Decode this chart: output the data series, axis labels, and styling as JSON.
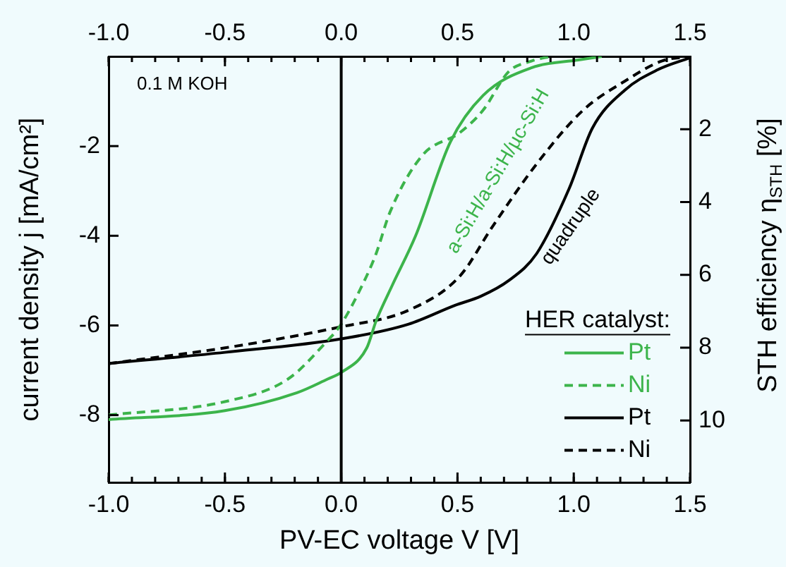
{
  "chart_data": {
    "type": "line",
    "xlabel": "PV-EC voltage V [V]",
    "ylabel": "current density j [mA/cm²]",
    "y2label": "STH efficiency η$_{STH}$ [%]",
    "legend_title": "HER catalyst:",
    "xlim": [
      -1.0,
      1.5
    ],
    "xticks": [
      {
        "value": -1,
        "label": "-1.0"
      },
      -0.5,
      {
        "value": 0,
        "label": "0.0"
      },
      0.5,
      {
        "value": 1,
        "label": "1.0"
      },
      1.5
    ],
    "x2lim": [
      -1.0,
      1.5
    ],
    "x2ticks": [
      {
        "value": -1,
        "label": "-1.0"
      },
      -0.5,
      {
        "value": 0,
        "label": "0.0"
      },
      0.5,
      {
        "value": 1,
        "label": "1.0"
      },
      1.5
    ],
    "ylim": [
      -9.5,
      0
    ],
    "yticks": [
      -2,
      -4,
      -6,
      -8
    ],
    "y2lim": [
      11.7,
      0
    ],
    "y2ticks": [
      2,
      4,
      6,
      8,
      10
    ],
    "legend": "right",
    "ref_lines": [
      {
        "axis": "x",
        "value": 0,
        "color": "#000000"
      }
    ],
    "annotations": [
      "0.1 M KOH",
      "a-Si:H/a-Si:H/µc-Si:H",
      "quadruple"
    ],
    "series": [
      {
        "name": "Pt",
        "color": "#3cb44b",
        "line_style": "solid",
        "x": [
          -1.0,
          -0.5,
          -0.19,
          -0.06,
          0,
          0.11,
          0.15,
          0.22,
          0.32,
          0.47,
          0.61,
          0.82,
          1.02,
          1.12
        ],
        "values": [
          -8.1,
          -7.9,
          -7.5,
          -7.2,
          -7.05,
          -6.5,
          -5.9,
          -5.1,
          -4.0,
          -1.9,
          -0.87,
          -0.25,
          -0.08,
          0
        ]
      },
      {
        "name": "Ni",
        "color": "#3cb44b",
        "line_style": "dashed",
        "x": [
          -1.0,
          -0.5,
          -0.23,
          -0.07,
          0,
          0.1,
          0.15,
          0.21,
          0.35,
          0.51,
          0.61,
          0.72,
          0.82,
          0.9
        ],
        "values": [
          -8.0,
          -7.7,
          -7.2,
          -6.4,
          -5.97,
          -5.0,
          -4.4,
          -3.47,
          -2.2,
          -1.7,
          -1.2,
          -0.34,
          -0.1,
          0
        ]
      },
      {
        "name": "Pt",
        "color": "#000000",
        "line_style": "solid",
        "x": [
          -1.0,
          -0.5,
          0,
          0.29,
          0.49,
          0.6,
          0.72,
          0.84,
          0.98,
          1.08,
          1.22,
          1.36,
          1.5
        ],
        "values": [
          -6.85,
          -6.6,
          -6.3,
          -5.97,
          -5.55,
          -5.35,
          -5.0,
          -4.4,
          -2.95,
          -1.6,
          -0.75,
          -0.3,
          -0.03
        ]
      },
      {
        "name": "Ni",
        "color": "#000000",
        "line_style": "dashed",
        "x": [
          -1.0,
          -0.5,
          0,
          0.29,
          0.51,
          0.65,
          0.84,
          1.04,
          1.22,
          1.38,
          1.5
        ],
        "values": [
          -6.85,
          -6.5,
          -6.03,
          -5.66,
          -4.9,
          -3.8,
          -2.4,
          -1.2,
          -0.55,
          -0.1,
          0
        ]
      }
    ]
  }
}
